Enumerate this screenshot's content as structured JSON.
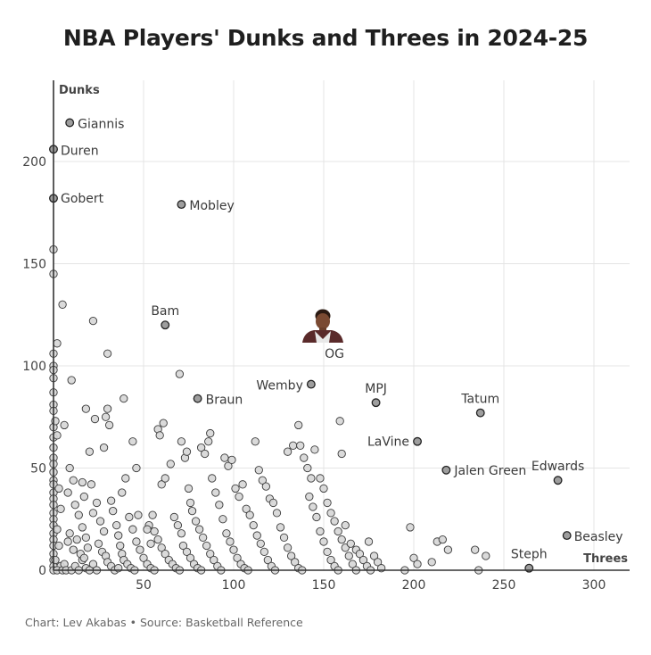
{
  "header": {
    "title": "NBA Players' Dunks and Threes in 2024-25"
  },
  "footer": {
    "credit": "Chart: Lev Akabas • Source: Basketball Reference"
  },
  "colors": {
    "point_fill": "#d6d6d6",
    "point_stroke": "#3a3a3a",
    "highlight_fill": "#9e9e9e",
    "grid": "#e4e4e4",
    "axis": "#333333"
  },
  "chart_data": {
    "type": "scatter",
    "title": "NBA Players' Dunks and Threes in 2024-25",
    "xlabel": "Threes",
    "ylabel": "Dunks",
    "xlim": [
      0,
      320
    ],
    "ylim": [
      0,
      235
    ],
    "xticks": [
      50,
      100,
      150,
      200,
      250,
      300
    ],
    "yticks": [
      0,
      50,
      100,
      150,
      200
    ],
    "grid": true,
    "labeled_points": [
      {
        "name": "Giannis",
        "x": 9,
        "y": 219
      },
      {
        "name": "Duren",
        "x": 0,
        "y": 206
      },
      {
        "name": "Gobert",
        "x": 0,
        "y": 182
      },
      {
        "name": "Mobley",
        "x": 71,
        "y": 179
      },
      {
        "name": "Bam",
        "x": 62,
        "y": 120
      },
      {
        "name": "OG",
        "x": 150,
        "y": 112
      },
      {
        "name": "Braun",
        "x": 80,
        "y": 84
      },
      {
        "name": "Wemby",
        "x": 143,
        "y": 91
      },
      {
        "name": "MPJ",
        "x": 179,
        "y": 82
      },
      {
        "name": "Tatum",
        "x": 237,
        "y": 77
      },
      {
        "name": "LaVine",
        "x": 202,
        "y": 63
      },
      {
        "name": "Jalen Green",
        "x": 218,
        "y": 49
      },
      {
        "name": "Edwards",
        "x": 280,
        "y": 44
      },
      {
        "name": "Beasley",
        "x": 285,
        "y": 17
      },
      {
        "name": "Steph",
        "x": 264,
        "y": 1
      }
    ],
    "points": [
      [
        0,
        157
      ],
      [
        0,
        145
      ],
      [
        5,
        130
      ],
      [
        2,
        111
      ],
      [
        0,
        106
      ],
      [
        0,
        100
      ],
      [
        0,
        98
      ],
      [
        0,
        94
      ],
      [
        0,
        87
      ],
      [
        0,
        81
      ],
      [
        0,
        78
      ],
      [
        0,
        70
      ],
      [
        0,
        65
      ],
      [
        0,
        60
      ],
      [
        0,
        55
      ],
      [
        0,
        52
      ],
      [
        0,
        48
      ],
      [
        0,
        44
      ],
      [
        0,
        42
      ],
      [
        0,
        38
      ],
      [
        0,
        35
      ],
      [
        0,
        32
      ],
      [
        0,
        28
      ],
      [
        0,
        25
      ],
      [
        0,
        22
      ],
      [
        0,
        18
      ],
      [
        0,
        15
      ],
      [
        0,
        12
      ],
      [
        0,
        8
      ],
      [
        0,
        5
      ],
      [
        0,
        2
      ],
      [
        0,
        0
      ],
      [
        1,
        73
      ],
      [
        2,
        66
      ],
      [
        3,
        40
      ],
      [
        4,
        30
      ],
      [
        2,
        20
      ],
      [
        3,
        12
      ],
      [
        1,
        5
      ],
      [
        4,
        2
      ],
      [
        2,
        0
      ],
      [
        5,
        0
      ],
      [
        6,
        3
      ],
      [
        7,
        0
      ],
      [
        8,
        14
      ],
      [
        10,
        0
      ],
      [
        12,
        2
      ],
      [
        14,
        0
      ],
      [
        16,
        5
      ],
      [
        18,
        1
      ],
      [
        20,
        0
      ],
      [
        22,
        3
      ],
      [
        24,
        0
      ],
      [
        10,
        93
      ],
      [
        6,
        71
      ],
      [
        9,
        50
      ],
      [
        11,
        44
      ],
      [
        8,
        38
      ],
      [
        12,
        32
      ],
      [
        14,
        27
      ],
      [
        16,
        21
      ],
      [
        9,
        18
      ],
      [
        13,
        15
      ],
      [
        11,
        10
      ],
      [
        15,
        8
      ],
      [
        17,
        6
      ],
      [
        19,
        11
      ],
      [
        18,
        16
      ],
      [
        16,
        43
      ],
      [
        17,
        36
      ],
      [
        22,
        122
      ],
      [
        18,
        79
      ],
      [
        23,
        74
      ],
      [
        20,
        58
      ],
      [
        21,
        42
      ],
      [
        24,
        33
      ],
      [
        22,
        28
      ],
      [
        26,
        24
      ],
      [
        28,
        19
      ],
      [
        25,
        13
      ],
      [
        27,
        9
      ],
      [
        29,
        7
      ],
      [
        30,
        4
      ],
      [
        32,
        2
      ],
      [
        34,
        0
      ],
      [
        36,
        1
      ],
      [
        30,
        106
      ],
      [
        30,
        79
      ],
      [
        31,
        71
      ],
      [
        29,
        75
      ],
      [
        28,
        60
      ],
      [
        32,
        34
      ],
      [
        33,
        29
      ],
      [
        35,
        22
      ],
      [
        36,
        17
      ],
      [
        37,
        12
      ],
      [
        38,
        8
      ],
      [
        39,
        5
      ],
      [
        41,
        3
      ],
      [
        43,
        1
      ],
      [
        45,
        0
      ],
      [
        39,
        84
      ],
      [
        38,
        38
      ],
      [
        40,
        45
      ],
      [
        42,
        26
      ],
      [
        44,
        20
      ],
      [
        46,
        14
      ],
      [
        48,
        10
      ],
      [
        50,
        6
      ],
      [
        52,
        3
      ],
      [
        54,
        1
      ],
      [
        56,
        0
      ],
      [
        44,
        63
      ],
      [
        46,
        50
      ],
      [
        47,
        27
      ],
      [
        55,
        27
      ],
      [
        53,
        22
      ],
      [
        56,
        19
      ],
      [
        58,
        15
      ],
      [
        60,
        11
      ],
      [
        62,
        8
      ],
      [
        64,
        5
      ],
      [
        66,
        3
      ],
      [
        68,
        1
      ],
      [
        70,
        0
      ],
      [
        52,
        20
      ],
      [
        54,
        13
      ],
      [
        58,
        69
      ],
      [
        59,
        66
      ],
      [
        61,
        72
      ],
      [
        60,
        42
      ],
      [
        62,
        45
      ],
      [
        65,
        52
      ],
      [
        67,
        26
      ],
      [
        69,
        22
      ],
      [
        71,
        18
      ],
      [
        72,
        12
      ],
      [
        74,
        9
      ],
      [
        76,
        6
      ],
      [
        78,
        3
      ],
      [
        80,
        1
      ],
      [
        82,
        0
      ],
      [
        70,
        96
      ],
      [
        71,
        63
      ],
      [
        73,
        55
      ],
      [
        74,
        58
      ],
      [
        75,
        40
      ],
      [
        76,
        33
      ],
      [
        77,
        29
      ],
      [
        79,
        24
      ],
      [
        81,
        20
      ],
      [
        83,
        16
      ],
      [
        85,
        12
      ],
      [
        87,
        8
      ],
      [
        89,
        5
      ],
      [
        91,
        2
      ],
      [
        93,
        0
      ],
      [
        82,
        60
      ],
      [
        84,
        57
      ],
      [
        86,
        63
      ],
      [
        87,
        67
      ],
      [
        88,
        45
      ],
      [
        90,
        38
      ],
      [
        92,
        32
      ],
      [
        94,
        25
      ],
      [
        96,
        18
      ],
      [
        98,
        14
      ],
      [
        100,
        10
      ],
      [
        102,
        6
      ],
      [
        104,
        3
      ],
      [
        106,
        1
      ],
      [
        108,
        0
      ],
      [
        95,
        55
      ],
      [
        97,
        51
      ],
      [
        99,
        54
      ],
      [
        101,
        40
      ],
      [
        103,
        36
      ],
      [
        105,
        42
      ],
      [
        107,
        30
      ],
      [
        109,
        27
      ],
      [
        111,
        22
      ],
      [
        113,
        17
      ],
      [
        115,
        13
      ],
      [
        117,
        9
      ],
      [
        119,
        5
      ],
      [
        121,
        2
      ],
      [
        123,
        0
      ],
      [
        112,
        63
      ],
      [
        114,
        49
      ],
      [
        116,
        44
      ],
      [
        118,
        41
      ],
      [
        120,
        35
      ],
      [
        122,
        33
      ],
      [
        124,
        28
      ],
      [
        126,
        21
      ],
      [
        128,
        16
      ],
      [
        130,
        11
      ],
      [
        132,
        7
      ],
      [
        134,
        4
      ],
      [
        136,
        1
      ],
      [
        138,
        0
      ],
      [
        130,
        58
      ],
      [
        133,
        61
      ],
      [
        136,
        71
      ],
      [
        137,
        61
      ],
      [
        139,
        55
      ],
      [
        141,
        50
      ],
      [
        143,
        45
      ],
      [
        142,
        36
      ],
      [
        144,
        31
      ],
      [
        146,
        26
      ],
      [
        148,
        19
      ],
      [
        150,
        14
      ],
      [
        152,
        9
      ],
      [
        154,
        5
      ],
      [
        156,
        2
      ],
      [
        158,
        0
      ],
      [
        145,
        59
      ],
      [
        148,
        45
      ],
      [
        150,
        40
      ],
      [
        152,
        33
      ],
      [
        154,
        28
      ],
      [
        156,
        24
      ],
      [
        158,
        19
      ],
      [
        160,
        15
      ],
      [
        162,
        11
      ],
      [
        164,
        7
      ],
      [
        166,
        3
      ],
      [
        168,
        0
      ],
      [
        159,
        73
      ],
      [
        160,
        57
      ],
      [
        162,
        22
      ],
      [
        165,
        13
      ],
      [
        168,
        10
      ],
      [
        170,
        8
      ],
      [
        172,
        5
      ],
      [
        174,
        2
      ],
      [
        176,
        0
      ],
      [
        175,
        14
      ],
      [
        178,
        7
      ],
      [
        180,
        4
      ],
      [
        182,
        1
      ],
      [
        195,
        0
      ],
      [
        198,
        21
      ],
      [
        200,
        6
      ],
      [
        202,
        3
      ],
      [
        210,
        4
      ],
      [
        213,
        14
      ],
      [
        216,
        15
      ],
      [
        219,
        10
      ],
      [
        234,
        10
      ],
      [
        236,
        0
      ],
      [
        240,
        7
      ]
    ]
  }
}
